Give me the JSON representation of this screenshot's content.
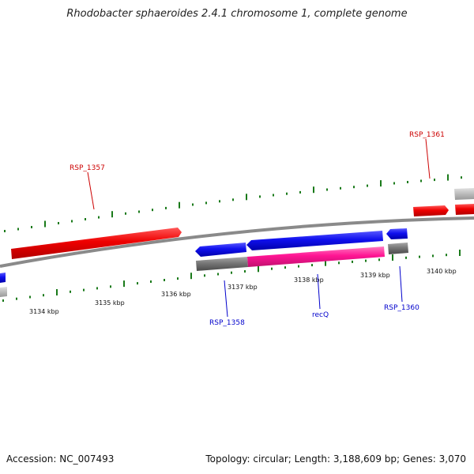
{
  "title": "Rhodobacter sphaeroides 2.4.1 chromosome 1, complete genome",
  "footer": {
    "accession": "Accession: NC_007493",
    "summary": "Topology: circular; Length: 3,188,609 bp; Genes: 3,070"
  },
  "colors": {
    "forward_gene": "#ee0000",
    "reverse_gene": "#1010ee",
    "highlight": "#ff1493",
    "rna_grey": "#777777",
    "light_grey": "#bbbbbb",
    "backbone": "#8a8a8a",
    "tick": "#1a7a1a",
    "label_forward": "#cc0000",
    "label_reverse": "#0000cc"
  },
  "scale": {
    "tick_labels": [
      "3134 kbp",
      "3135 kbp",
      "3136 kbp",
      "3137 kbp",
      "3138 kbp",
      "3139 kbp",
      "3140 kbp"
    ]
  },
  "genes": {
    "rsp_1357": "RSP_1357",
    "rsp_1361": "RSP_1361",
    "rsp_1358": "RSP_1358",
    "recq": "recQ",
    "rsp_1360": "RSP_1360"
  }
}
